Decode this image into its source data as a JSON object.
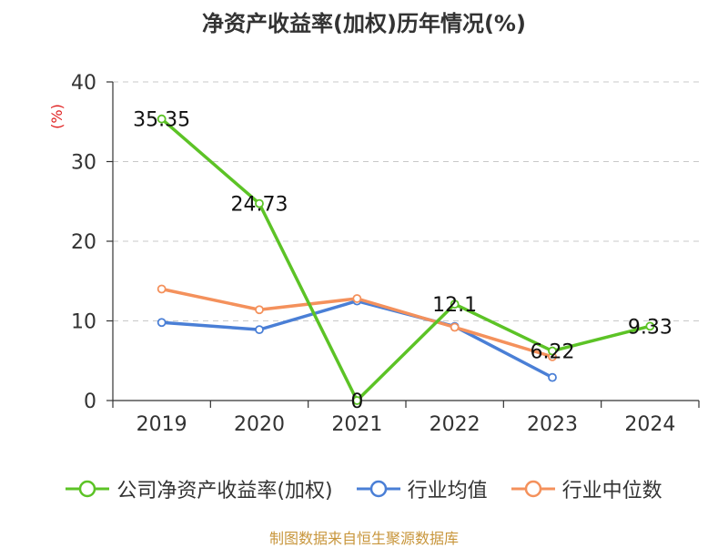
{
  "title": "净资产收益率(加权)历年情况(%)",
  "source": "制图数据来自恒生聚源数据库",
  "chart_data": {
    "type": "line",
    "title": "净资产收益率(加权)历年情况(%)",
    "ylabel": "(%)",
    "xlabel": "",
    "categories": [
      "2019",
      "2020",
      "2021",
      "2022",
      "2023",
      "2024"
    ],
    "ylim": [
      0,
      40
    ],
    "yticks": [
      0,
      10,
      20,
      30,
      40
    ],
    "grid": true,
    "legend_position": "bottom",
    "series": [
      {
        "name": "公司净资产收益率(加权)",
        "color": "#5cc326",
        "values": [
          35.35,
          24.73,
          0,
          12.1,
          6.22,
          9.33
        ],
        "labels": [
          "35.35",
          "24.73",
          "0",
          "12.1",
          "6.22",
          "9.33"
        ]
      },
      {
        "name": "行业均值",
        "color": "#4a7fd6",
        "values": [
          9.8,
          8.9,
          12.5,
          9.3,
          2.9,
          null
        ]
      },
      {
        "name": "行业中位数",
        "color": "#f4915c",
        "values": [
          14.0,
          11.4,
          12.8,
          9.2,
          5.5,
          null
        ]
      }
    ]
  }
}
